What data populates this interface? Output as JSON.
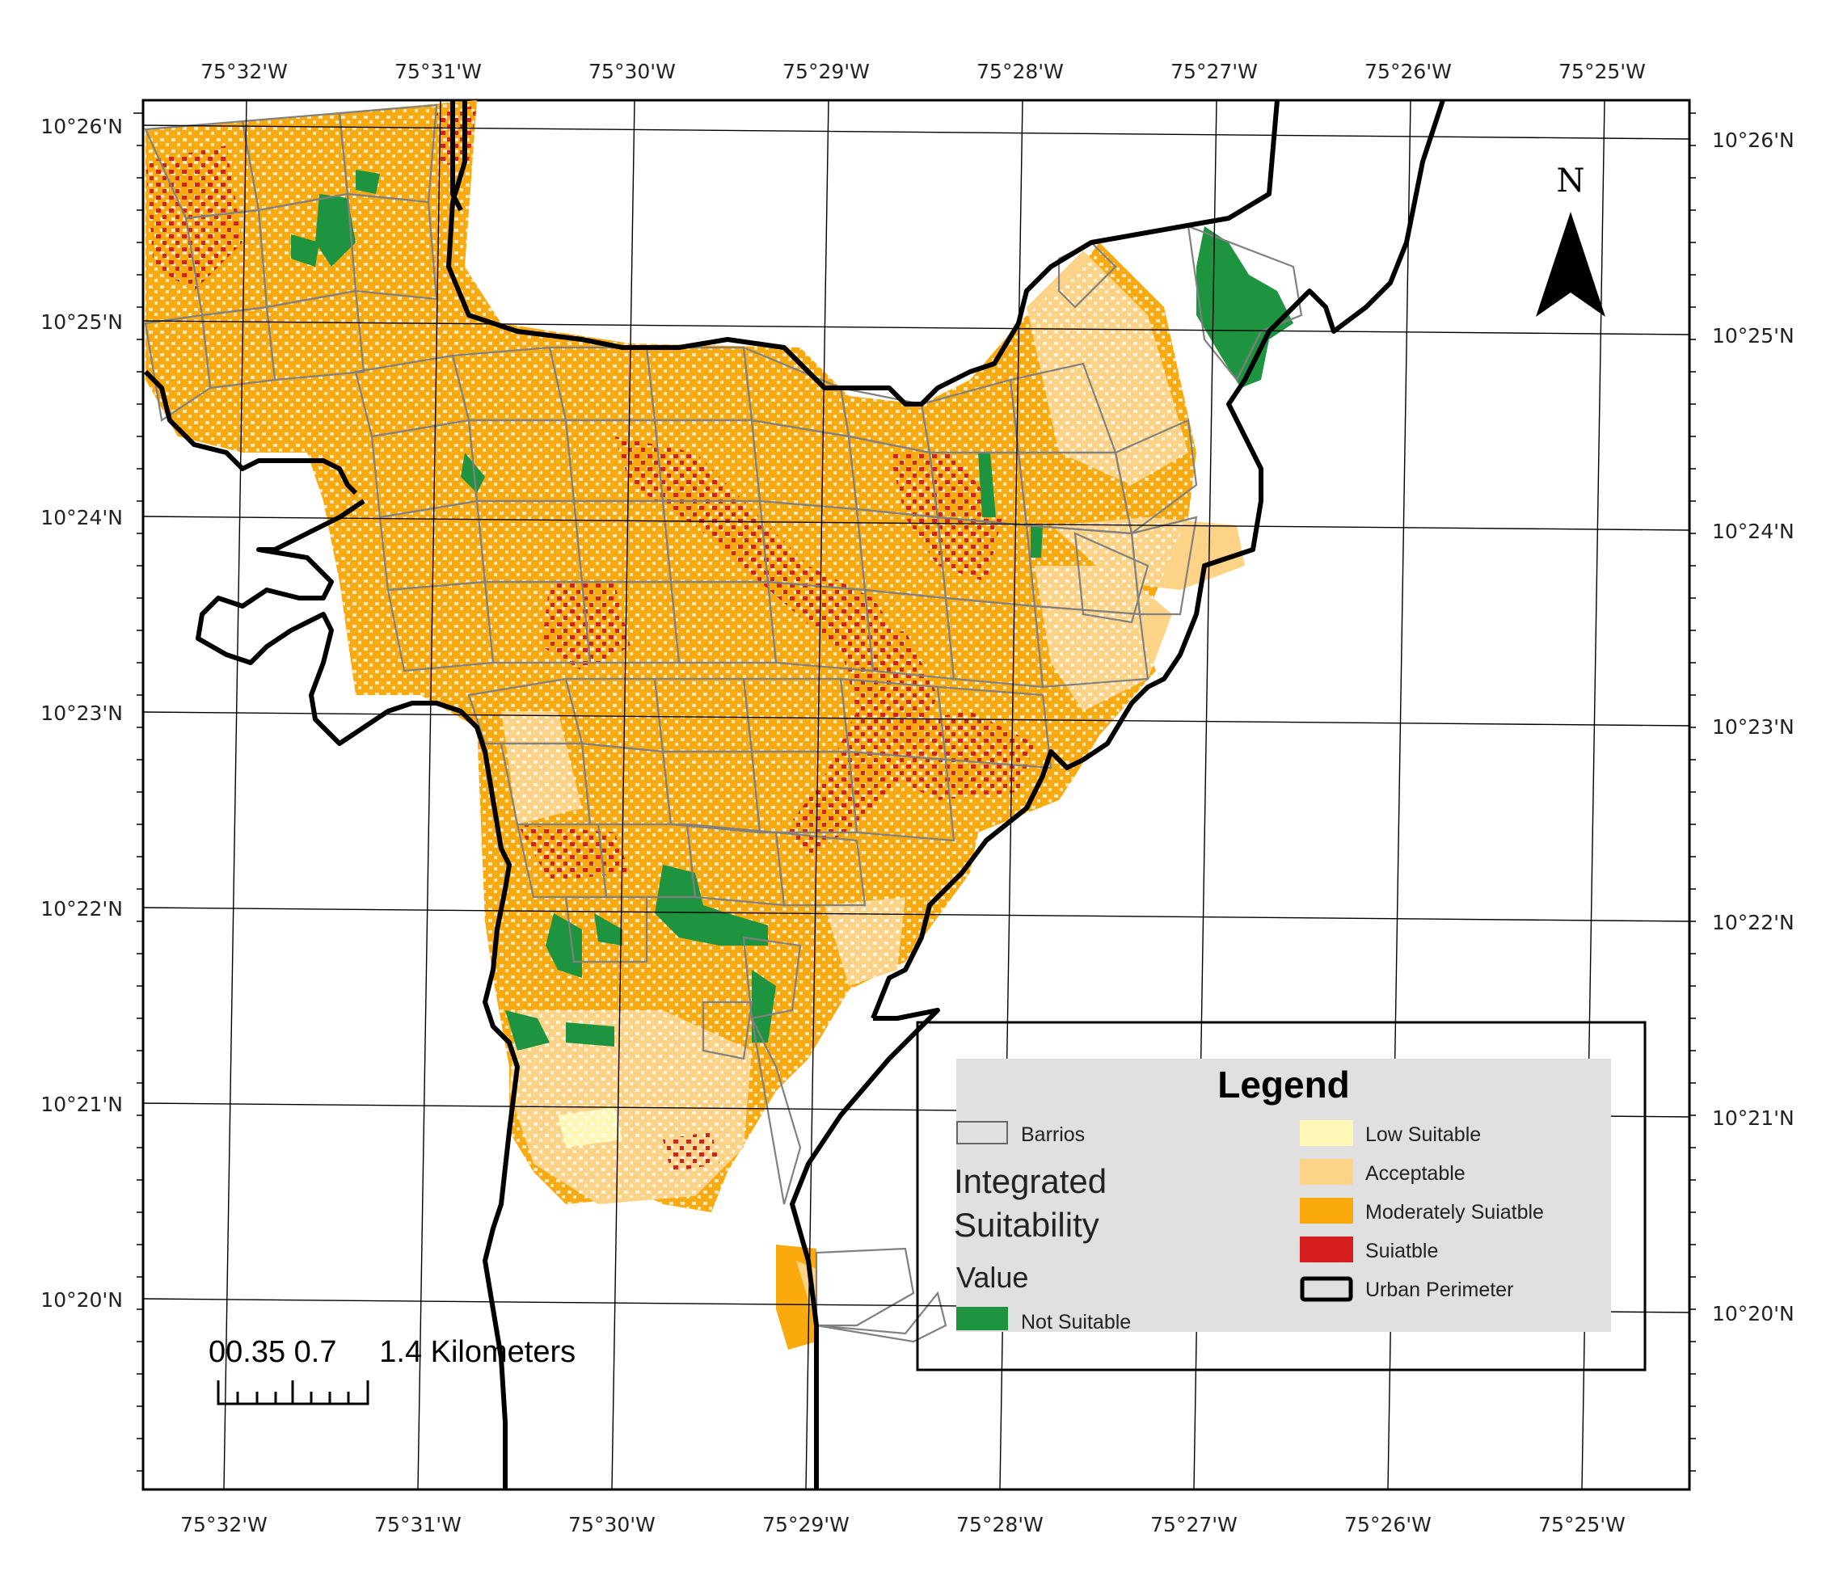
{
  "map": {
    "top_lon_labels": [
      "75°32'W",
      "75°31'W",
      "75°30'W",
      "75°29'W",
      "75°28'W",
      "75°27'W",
      "75°26'W",
      "75°25'W"
    ],
    "bottom_lon_labels": [
      "75°32'W",
      "75°31'W",
      "75°30'W",
      "75°29'W",
      "75°28'W",
      "75°27'W",
      "75°26'W",
      "75°25'W"
    ],
    "left_lat_labels": [
      "10°26'N",
      "10°25'N",
      "10°24'N",
      "10°23'N",
      "10°22'N",
      "10°21'N",
      "10°20'N"
    ],
    "right_lat_labels": [
      "10°26'N",
      "10°25'N",
      "10°24'N",
      "10°23'N",
      "10°22'N",
      "10°21'N",
      "10°20'N"
    ],
    "north_arrow_label": "N",
    "scale_bar_text": "00.35 0.7     1.4 Kilometers"
  },
  "legend": {
    "title": "Legend",
    "barrios_label": "Barrios",
    "integrated_title": "Integrated Suitability",
    "value_label": "Value",
    "not_suitable_label": "Not Suitable",
    "low_suitable_label": "Low Suitable",
    "acceptable_label": "Acceptable",
    "moderately_label": "Moderately Suiatble",
    "suitable_label": "Suiatble",
    "urban_perimeter_label": "Urban Perimeter"
  },
  "colors": {
    "not_suitable": "#1e9440",
    "low_suitable": "#fff7b6",
    "acceptable": "#fdd387",
    "moderately": "#fbaa0d",
    "suitable": "#d71f1f",
    "barrios_stroke": "#808080",
    "urban_perimeter": "#000000",
    "legend_bg": "#e0e0e0"
  }
}
